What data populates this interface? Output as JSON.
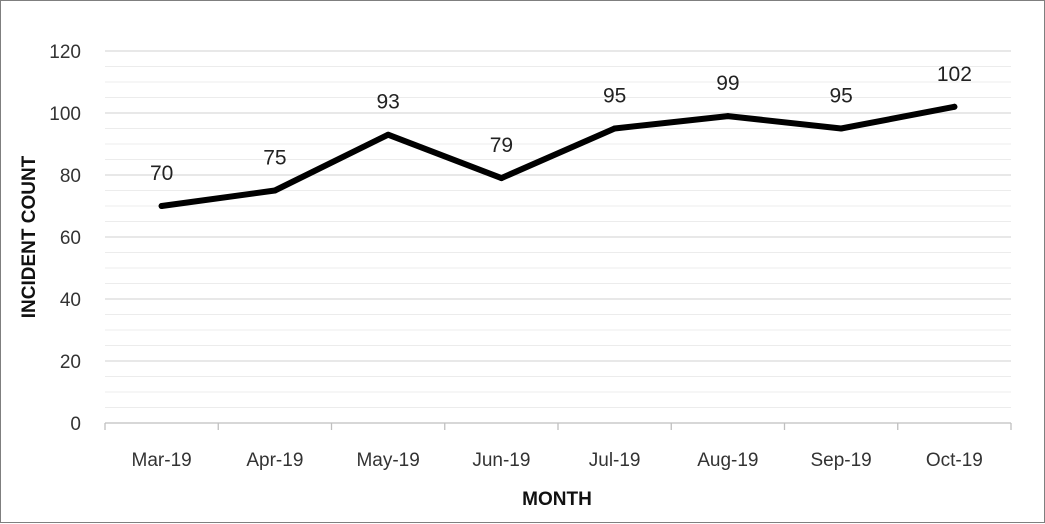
{
  "chart_data": {
    "type": "line",
    "categories": [
      "Mar-19",
      "Apr-19",
      "May-19",
      "Jun-19",
      "Jul-19",
      "Aug-19",
      "Sep-19",
      "Oct-19"
    ],
    "series": [
      {
        "values": [
          70,
          75,
          93,
          79,
          95,
          99,
          95,
          102
        ]
      }
    ],
    "data_labels": [
      "70",
      "75",
      "93",
      "79",
      "95",
      "99",
      "95",
      "102"
    ],
    "xlabel": "MONTH",
    "ylabel": "INCIDENT COUNT",
    "ylim": [
      0,
      120
    ],
    "yticks": [
      "0",
      "20",
      "40",
      "60",
      "80",
      "100",
      "120"
    ],
    "grid": true,
    "legend": "none",
    "line_color": "#000000",
    "grid_color": "#d9d9d9"
  }
}
